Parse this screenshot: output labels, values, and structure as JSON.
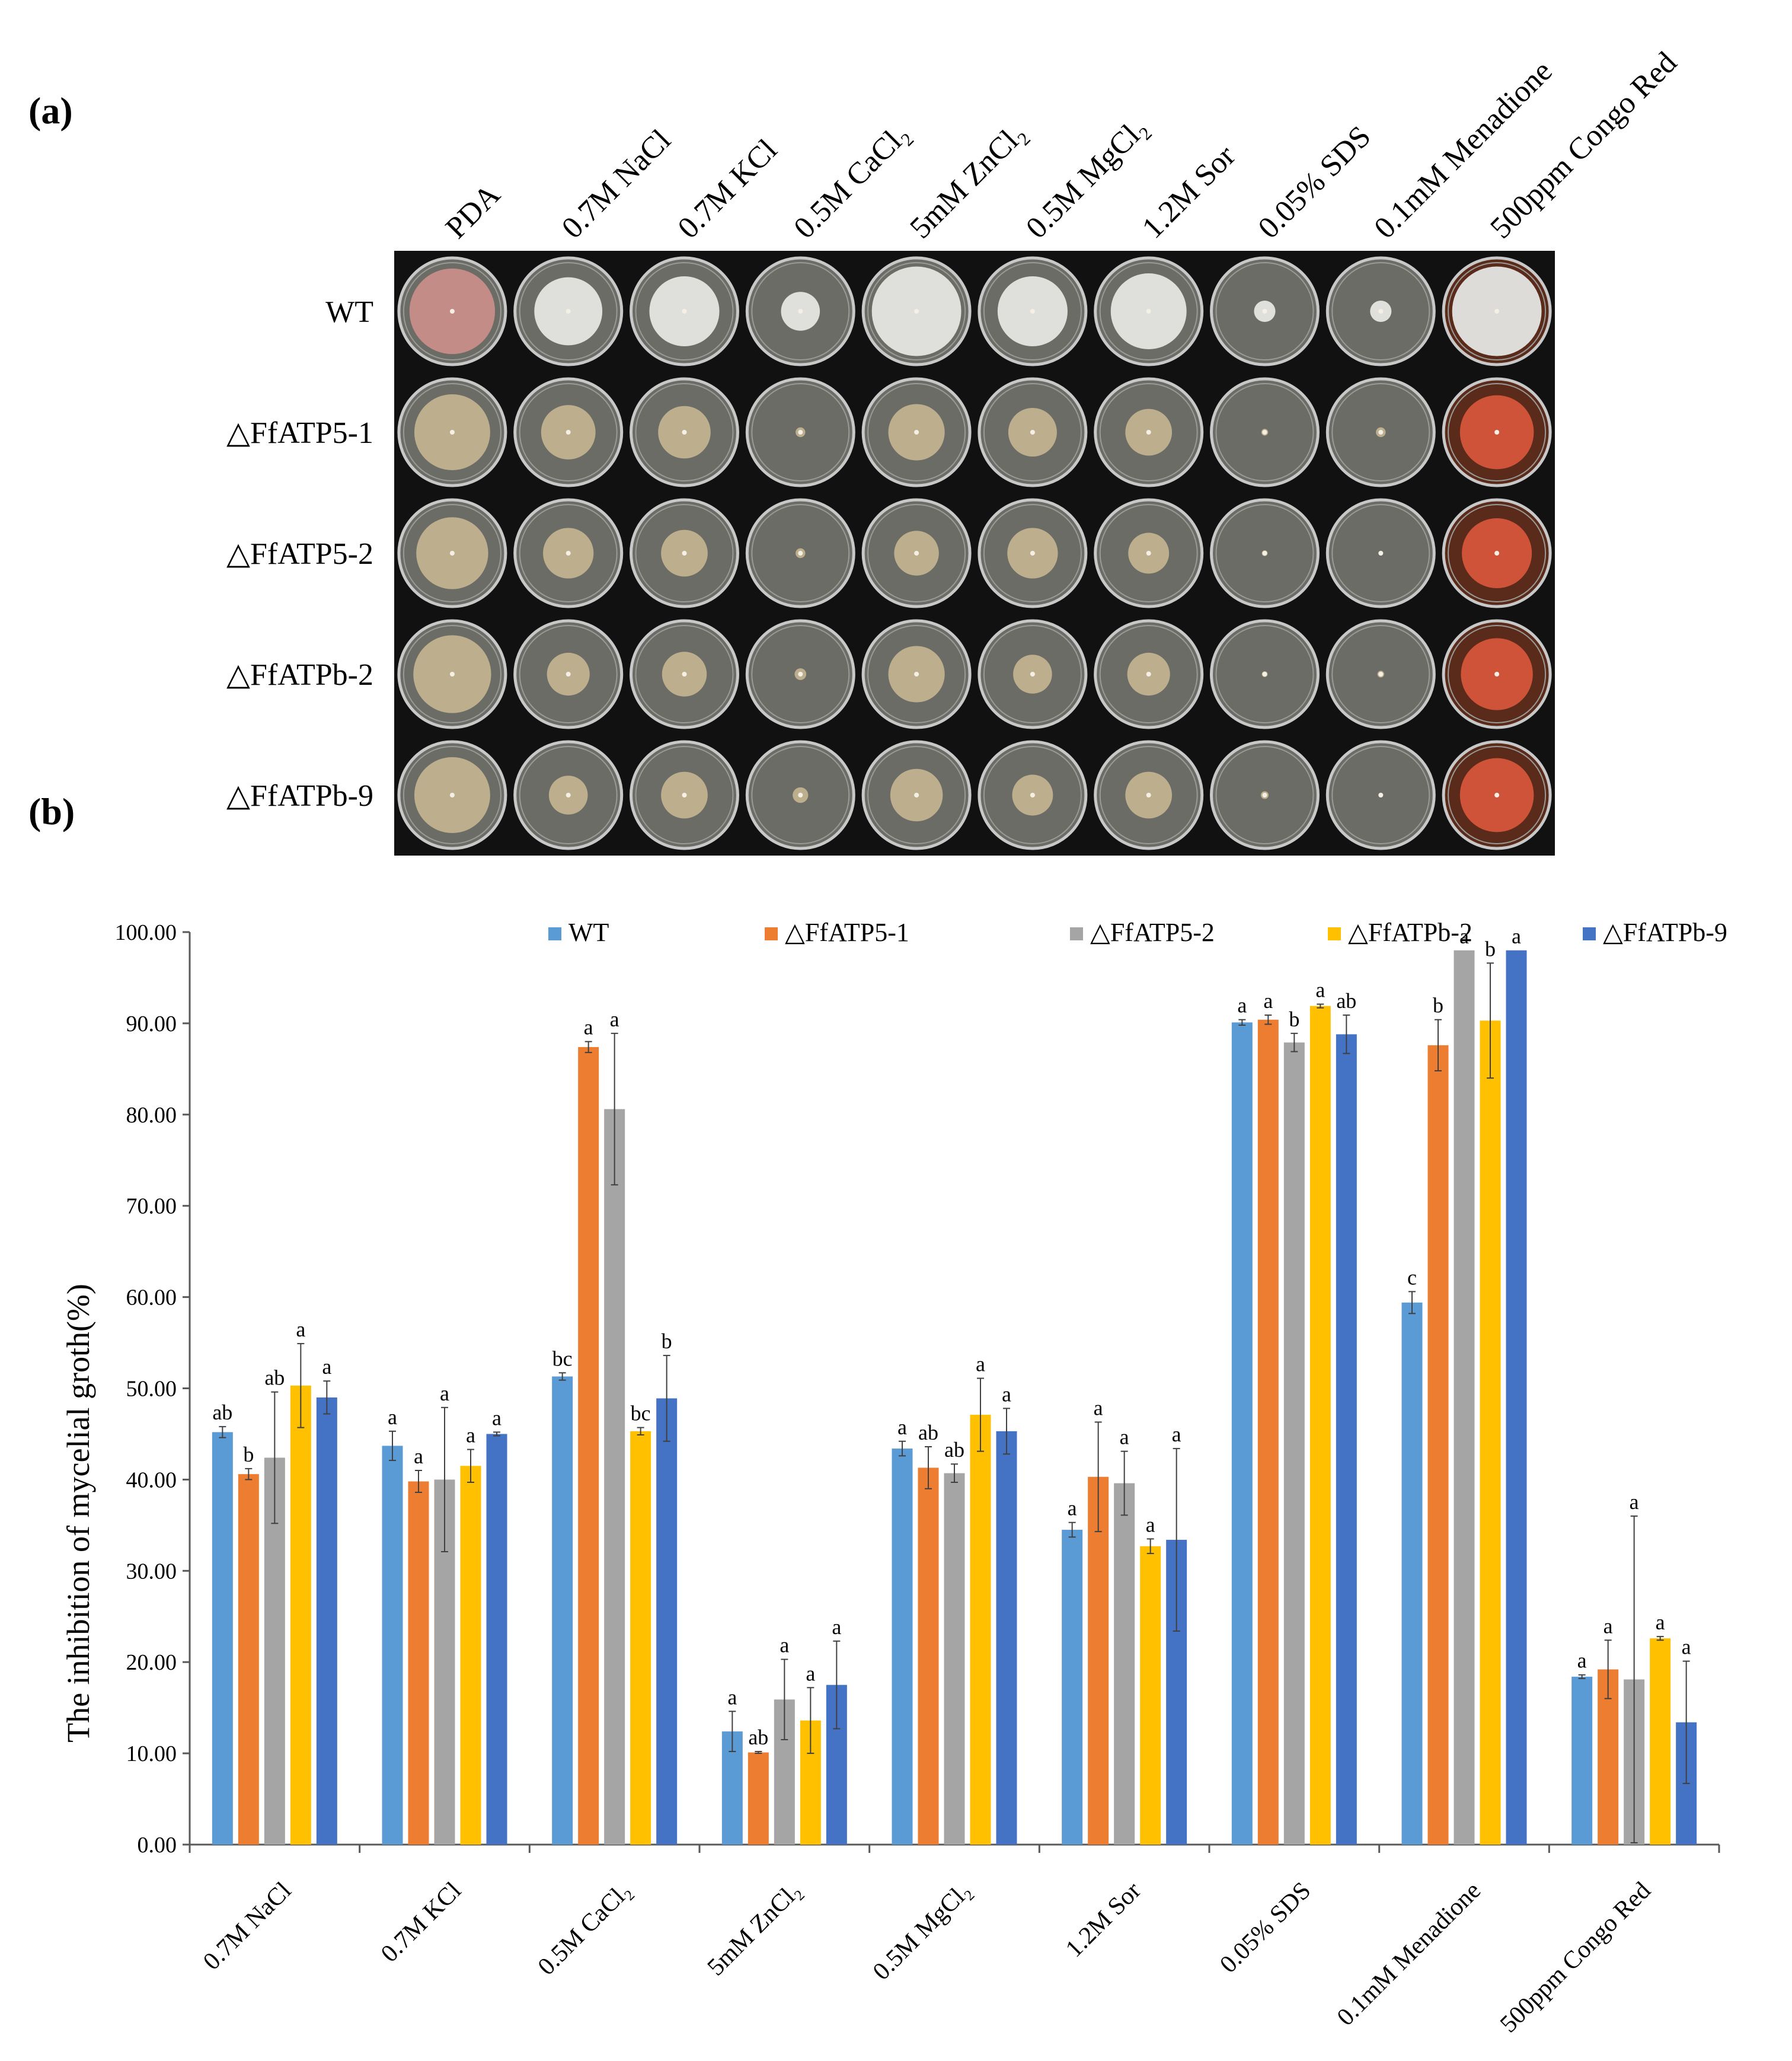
{
  "panel_a": {
    "label": "(a)",
    "treatments": [
      "PDA",
      "0.7M NaCl",
      "0.7M KCl",
      "0.5M CaCl₂",
      "5mM ZnCl₂",
      "0.5M MgCl₂",
      "1.2M Sor",
      "0.05% SDS",
      "0.1mM Menadione",
      "500ppm Congo Red"
    ],
    "strains": [
      "WT",
      "△FfATP5-1",
      "△FfATP5-2",
      "△FfATPb-2",
      "△FfATPb-9"
    ],
    "colony_fraction": [
      [
        0.88,
        0.7,
        0.72,
        0.4,
        0.92,
        0.72,
        0.78,
        0.22,
        0.22,
        0.92
      ],
      [
        0.78,
        0.56,
        0.54,
        0.1,
        0.58,
        0.5,
        0.48,
        0.07,
        0.1,
        0.76
      ],
      [
        0.74,
        0.52,
        0.48,
        0.1,
        0.46,
        0.52,
        0.42,
        0.06,
        0.04,
        0.72
      ],
      [
        0.8,
        0.44,
        0.46,
        0.12,
        0.58,
        0.4,
        0.44,
        0.06,
        0.07,
        0.74
      ],
      [
        0.78,
        0.4,
        0.48,
        0.16,
        0.54,
        0.42,
        0.48,
        0.08,
        0.04,
        0.76
      ]
    ],
    "colony_colors": {
      "wt_pda": "#c98e89",
      "wt_white": "#e6e6e3",
      "mutant": "#c2b38f",
      "agar": "#6b6c66",
      "congo": "#5a2a1a",
      "congo_spot": "#d5553a"
    }
  },
  "panel_b": {
    "label": "(b)",
    "chart_data": {
      "type": "bar",
      "ylabel": "The inhibition of mycelial groth(%)",
      "ylim": [
        0,
        100
      ],
      "yticks": [
        "0.00",
        "10.00",
        "20.00",
        "30.00",
        "40.00",
        "50.00",
        "60.00",
        "70.00",
        "80.00",
        "90.00",
        "100.00"
      ],
      "categories": [
        "0.7M NaCl",
        "0.7M KCl",
        "0.5M CaCl₂",
        "5mM ZnCl₂",
        "0.5M MgCl₂",
        "1.2M Sor",
        "0.05% SDS",
        "0.1mM Menadione",
        "500ppm Congo Red"
      ],
      "series": [
        {
          "name": "WT",
          "color": "#5b9bd5",
          "values": [
            45.2,
            43.7,
            51.3,
            12.4,
            43.4,
            34.5,
            90.1,
            59.4,
            18.4
          ],
          "errors": [
            0.6,
            1.6,
            0.4,
            2.2,
            0.8,
            0.8,
            0.3,
            1.2,
            0.2
          ],
          "letters": [
            "ab",
            "a",
            "bc",
            "a",
            "a",
            "a",
            "a",
            "c",
            "a"
          ]
        },
        {
          "name": "△FfATP5-1",
          "color": "#ed7d31",
          "values": [
            40.6,
            39.8,
            87.4,
            10.1,
            41.3,
            40.3,
            90.4,
            87.6,
            19.2
          ],
          "errors": [
            0.6,
            1.2,
            0.6,
            0.1,
            2.3,
            6.0,
            0.5,
            2.8,
            3.2
          ],
          "letters": [
            "b",
            "a",
            "a",
            "ab",
            "ab",
            "a",
            "a",
            "b",
            "a"
          ]
        },
        {
          "name": "△FfATP5-2",
          "color": "#a5a5a5",
          "values": [
            42.4,
            40.0,
            80.6,
            15.9,
            40.7,
            39.6,
            87.9,
            98.0,
            18.1
          ],
          "errors": [
            7.2,
            7.9,
            8.3,
            4.4,
            1.0,
            3.5,
            1.0,
            0.0,
            17.9
          ],
          "letters": [
            "ab",
            "a",
            "a",
            "a",
            "ab",
            "a",
            "b",
            "a",
            "a"
          ]
        },
        {
          "name": "△FfATPb-2",
          "color": "#ffc000",
          "values": [
            50.3,
            41.5,
            45.3,
            13.6,
            47.1,
            32.7,
            91.9,
            90.3,
            22.6
          ],
          "errors": [
            4.6,
            1.8,
            0.4,
            3.6,
            4.0,
            0.8,
            0.2,
            6.3,
            0.2
          ],
          "letters": [
            "a",
            "a",
            "bc",
            "a",
            "a",
            "a",
            "a",
            "b",
            "a"
          ]
        },
        {
          "name": "△FfATPb-9",
          "color": "#4472c4",
          "values": [
            49.0,
            45.0,
            48.9,
            17.5,
            45.3,
            33.4,
            88.8,
            98.0,
            13.4
          ],
          "errors": [
            1.8,
            0.2,
            4.7,
            4.8,
            2.5,
            10.0,
            2.1,
            0.0,
            6.7
          ],
          "letters": [
            "a",
            "a",
            "b",
            "a",
            "a",
            "a",
            "ab",
            "a",
            "a"
          ]
        }
      ],
      "legend_position": "top-right"
    }
  }
}
